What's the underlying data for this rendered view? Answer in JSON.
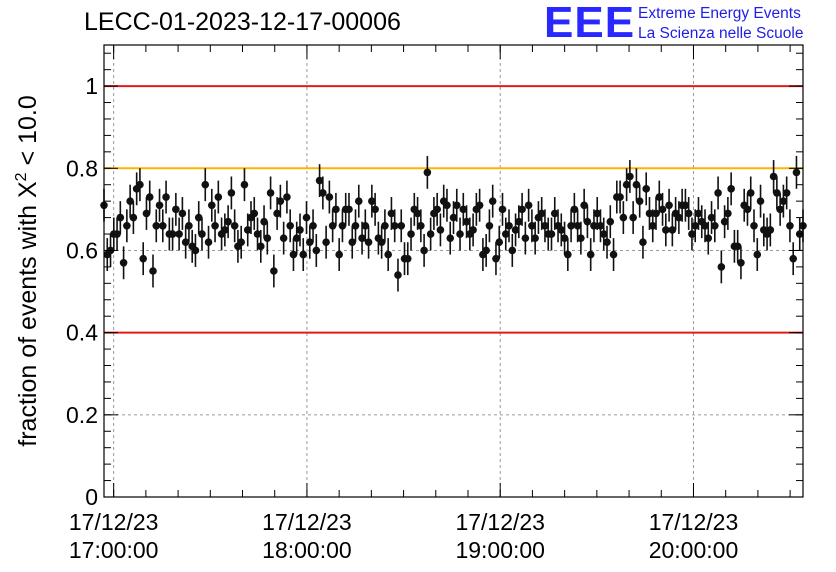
{
  "title": "LECC-01-2023-12-17-00006",
  "logo": {
    "mark": "EEE",
    "line1": "Extreme Energy Events",
    "line2": "La Scienza nelle Scuole",
    "color": "#2828ff"
  },
  "chart_data": {
    "type": "scatter",
    "title": "LECC-01-2023-12-17-00006",
    "xlabel": "",
    "ylabel_prefix": "fraction of events with ",
    "ylabel_symbol": "X",
    "ylabel_sup": "2",
    "ylabel_suffix": " < 10.0",
    "ylim": [
      0,
      1.1
    ],
    "xlim": [
      "2023-12-17 16:57:00",
      "2023-12-17 20:34:00"
    ],
    "y_ticks": [
      0,
      0.2,
      0.4,
      0.6,
      0.8,
      1
    ],
    "y_tick_labels": [
      "0",
      "0.2",
      "0.4",
      "0.6",
      "0.8",
      "1"
    ],
    "x_ticks": [
      {
        "time": "2023-12-17 17:00:00",
        "date_label": "17/12/23",
        "time_label": "17:00:00"
      },
      {
        "time": "2023-12-17 18:00:00",
        "date_label": "17/12/23",
        "time_label": "18:00:00"
      },
      {
        "time": "2023-12-17 19:00:00",
        "date_label": "17/12/23",
        "time_label": "19:00:00"
      },
      {
        "time": "2023-12-17 20:00:00",
        "date_label": "17/12/23",
        "time_label": "20:00:00"
      }
    ],
    "grid": true,
    "reference_lines": [
      {
        "y": 1.0,
        "color": "#e31a1a"
      },
      {
        "y": 0.8,
        "color": "#ffb300"
      },
      {
        "y": 0.4,
        "color": "#e31a1a"
      }
    ],
    "series": [
      {
        "marker_color": "#111111",
        "start": "2023-12-17 16:57:00",
        "end": "2023-12-17 20:34:00",
        "error": 0.04,
        "y": [
          0.71,
          0.59,
          0.6,
          0.64,
          0.64,
          0.68,
          0.57,
          0.66,
          0.72,
          0.68,
          0.75,
          0.76,
          0.58,
          0.69,
          0.73,
          0.55,
          0.66,
          0.71,
          0.66,
          0.73,
          0.64,
          0.64,
          0.7,
          0.64,
          0.69,
          0.62,
          0.66,
          0.61,
          0.6,
          0.68,
          0.64,
          0.76,
          0.62,
          0.71,
          0.66,
          0.73,
          0.64,
          0.65,
          0.67,
          0.74,
          0.66,
          0.61,
          0.62,
          0.76,
          0.65,
          0.68,
          0.69,
          0.64,
          0.61,
          0.67,
          0.63,
          0.74,
          0.55,
          0.69,
          0.72,
          0.63,
          0.73,
          0.66,
          0.59,
          0.63,
          0.65,
          0.59,
          0.68,
          0.62,
          0.66,
          0.6,
          0.77,
          0.74,
          0.62,
          0.73,
          0.66,
          0.7,
          0.59,
          0.66,
          0.7,
          0.7,
          0.62,
          0.66,
          0.72,
          0.63,
          0.66,
          0.62,
          0.72,
          0.7,
          0.63,
          0.62,
          0.66,
          0.59,
          0.69,
          0.66,
          0.54,
          0.66,
          0.58,
          0.58,
          0.64,
          0.7,
          0.69,
          0.66,
          0.6,
          0.79,
          0.64,
          0.69,
          0.7,
          0.65,
          0.72,
          0.71,
          0.63,
          0.68,
          0.71,
          0.64,
          0.7,
          0.67,
          0.64,
          0.65,
          0.7,
          0.71,
          0.59,
          0.6,
          0.66,
          0.72,
          0.58,
          0.62,
          0.7,
          0.64,
          0.66,
          0.6,
          0.65,
          0.67,
          0.7,
          0.63,
          0.71,
          0.66,
          0.63,
          0.68,
          0.69,
          0.66,
          0.64,
          0.64,
          0.69,
          0.66,
          0.65,
          0.63,
          0.59,
          0.66,
          0.7,
          0.66,
          0.63,
          0.71,
          0.67,
          0.59,
          0.66,
          0.69,
          0.66,
          0.64,
          0.62,
          0.67,
          0.59,
          0.73,
          0.73,
          0.68,
          0.76,
          0.78,
          0.68,
          0.76,
          0.72,
          0.62,
          0.75,
          0.69,
          0.66,
          0.69,
          0.73,
          0.7,
          0.65,
          0.71,
          0.65,
          0.69,
          0.68,
          0.71,
          0.71,
          0.69,
          0.64,
          0.66,
          0.69,
          0.67,
          0.66,
          0.63,
          0.68,
          0.66,
          0.74,
          0.56,
          0.67,
          0.69,
          0.75,
          0.61,
          0.61,
          0.57,
          0.71,
          0.7,
          0.74,
          0.66,
          0.59,
          0.72,
          0.65,
          0.64,
          0.65,
          0.78,
          0.74,
          0.7,
          0.72,
          0.74,
          0.66,
          0.58,
          0.79,
          0.64,
          0.66
        ]
      }
    ]
  }
}
